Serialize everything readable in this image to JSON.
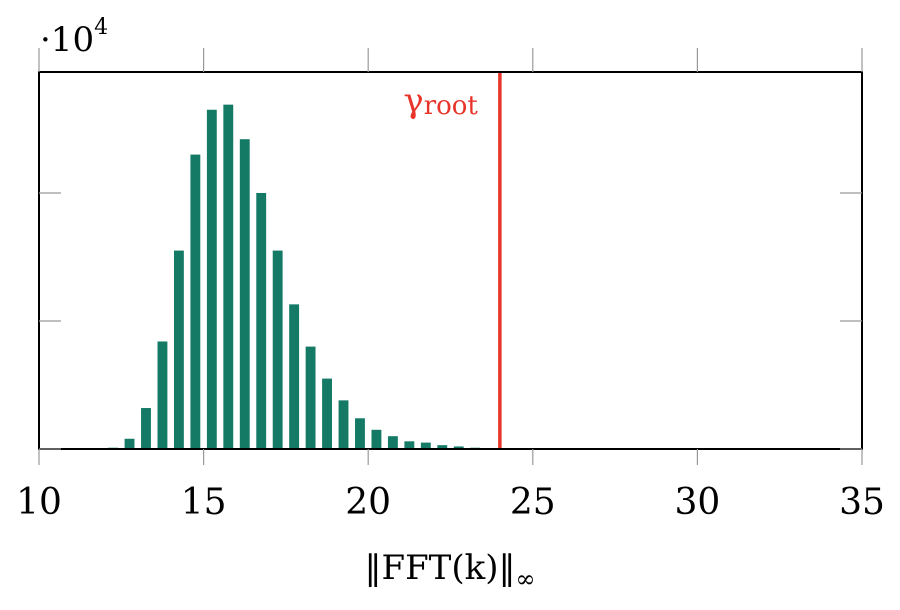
{
  "chart_data": {
    "type": "histogram",
    "bins": [
      12.0,
      12.5,
      13.0,
      13.5,
      14.0,
      14.5,
      15.0,
      15.5,
      16.0,
      16.5,
      17.0,
      17.5,
      18.0,
      18.5,
      19.0,
      19.5,
      20.0,
      20.5,
      21.0,
      21.5,
      22.0,
      22.5,
      23.0,
      23.5
    ],
    "values": [
      100,
      800,
      3200,
      8400,
      15500,
      23000,
      26500,
      26900,
      24200,
      20000,
      15500,
      11300,
      8000,
      5500,
      3800,
      2400,
      1500,
      1000,
      600,
      500,
      300,
      200,
      100
    ],
    "color": "#147a66",
    "xlim": [
      10,
      35
    ],
    "xticks": [
      10,
      15,
      20,
      25,
      30,
      35
    ],
    "ylim": [
      0,
      29450
    ],
    "yticks": [
      0,
      10000,
      20000
    ],
    "y_multiplier": {
      "base": "·10",
      "exponent": "4"
    },
    "xlabel": {
      "text": "‖FFT(k)‖",
      "subscript": "∞"
    },
    "vline": {
      "x": 24,
      "color": "#e8352b",
      "label": "γ",
      "label_subscript": "root"
    }
  }
}
